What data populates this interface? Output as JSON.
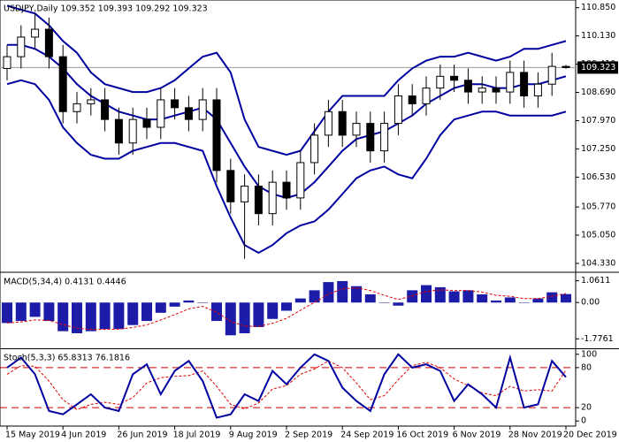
{
  "chart_data": [
    {
      "type": "candlestick",
      "title": "USDJPY,Daily  109.352 109.393 109.292 109.323",
      "categories": [
        "15 May 2019",
        null,
        null,
        null,
        "4 Jun 2019",
        null,
        null,
        null,
        "26 Jun 2019",
        null,
        null,
        null,
        "18 Jul 2019",
        null,
        null,
        null,
        "9 Aug 2019",
        null,
        null,
        null,
        "2 Sep 2019",
        null,
        null,
        null,
        "24 Sep 2019",
        null,
        null,
        null,
        "16 Oct 2019",
        null,
        null,
        null,
        "6 Nov 2019",
        null,
        null,
        null,
        "28 Nov 2019",
        null,
        null,
        null,
        "20 Dec 2019"
      ],
      "open": [
        109.3,
        109.6,
        110.1,
        110.3,
        109.6,
        108.2,
        108.4,
        108.5,
        108.0,
        107.4,
        108.0,
        107.8,
        108.5,
        108.3,
        108.0,
        108.5,
        106.7,
        105.9,
        106.3,
        105.6,
        106.4,
        106.0,
        106.9,
        107.6,
        108.2,
        107.6,
        107.9,
        107.2,
        107.9,
        108.6,
        108.4,
        108.8,
        109.1,
        109.0,
        108.7,
        108.8,
        108.7,
        109.2,
        108.6,
        108.9,
        109.352
      ],
      "high": [
        109.9,
        110.4,
        110.7,
        110.6,
        109.9,
        108.7,
        108.8,
        108.8,
        108.3,
        108.3,
        108.3,
        108.8,
        108.8,
        108.6,
        108.8,
        108.8,
        107.0,
        106.6,
        106.6,
        106.7,
        106.7,
        107.2,
        107.9,
        108.5,
        108.5,
        108.2,
        108.2,
        108.2,
        108.9,
        108.9,
        109.1,
        109.4,
        109.4,
        109.3,
        109.1,
        109.1,
        109.5,
        109.5,
        109.2,
        109.7,
        109.393
      ],
      "low": [
        109.0,
        109.3,
        109.8,
        109.3,
        107.9,
        107.9,
        108.1,
        107.7,
        107.1,
        107.1,
        107.5,
        107.5,
        108.0,
        107.7,
        107.7,
        106.4,
        105.6,
        104.45,
        105.3,
        105.3,
        105.7,
        105.7,
        106.6,
        107.3,
        107.3,
        107.3,
        106.9,
        106.9,
        107.6,
        108.1,
        108.1,
        108.5,
        108.7,
        108.4,
        108.4,
        108.4,
        108.4,
        108.3,
        108.3,
        108.6,
        109.292
      ],
      "close": [
        109.6,
        110.1,
        110.3,
        109.6,
        108.2,
        108.4,
        108.5,
        108.0,
        107.4,
        108.0,
        107.8,
        108.5,
        108.3,
        108.0,
        108.5,
        106.7,
        105.9,
        106.3,
        105.6,
        106.4,
        106.0,
        106.9,
        107.6,
        108.2,
        107.6,
        107.9,
        107.2,
        107.9,
        108.6,
        108.4,
        108.8,
        109.1,
        109.0,
        108.7,
        108.8,
        108.7,
        109.2,
        108.6,
        108.9,
        109.352,
        109.323
      ],
      "bands": {
        "color": "#0000a0",
        "upper": [
          110.9,
          110.8,
          110.7,
          110.4,
          110.0,
          109.7,
          109.2,
          108.9,
          108.8,
          108.7,
          108.7,
          108.8,
          109.0,
          109.3,
          109.6,
          109.7,
          109.2,
          108.0,
          107.3,
          107.2,
          107.1,
          107.2,
          107.7,
          108.2,
          108.6,
          108.6,
          108.6,
          108.6,
          109.0,
          109.3,
          109.5,
          109.6,
          109.6,
          109.7,
          109.6,
          109.5,
          109.6,
          109.8,
          109.8,
          109.9,
          110.0
        ],
        "middle": [
          109.9,
          109.9,
          109.8,
          109.6,
          109.3,
          108.9,
          108.6,
          108.4,
          108.2,
          108.1,
          108.0,
          108.0,
          108.1,
          108.2,
          108.3,
          108.0,
          107.4,
          106.8,
          106.3,
          106.1,
          106.0,
          106.1,
          106.4,
          106.8,
          107.2,
          107.5,
          107.6,
          107.7,
          107.9,
          108.1,
          108.4,
          108.6,
          108.8,
          108.9,
          108.9,
          108.8,
          108.8,
          108.9,
          108.9,
          109.0,
          109.1
        ],
        "lower": [
          108.9,
          109.0,
          108.9,
          108.5,
          107.8,
          107.4,
          107.1,
          107.0,
          107.0,
          107.2,
          107.3,
          107.4,
          107.4,
          107.3,
          107.2,
          106.3,
          105.5,
          104.8,
          104.6,
          104.8,
          105.1,
          105.3,
          105.4,
          105.7,
          106.1,
          106.5,
          106.7,
          106.8,
          106.6,
          106.5,
          107.0,
          107.6,
          108.0,
          108.1,
          108.2,
          108.2,
          108.1,
          108.1,
          108.1,
          108.1,
          108.2
        ]
      },
      "current_price": 109.323,
      "ylim": [
        104.15,
        111.0
      ],
      "yticks": [
        {
          "value": 110.85,
          "label": "110.850"
        },
        {
          "value": 110.13,
          "label": "110.130"
        },
        {
          "value": 109.41,
          "label": "109.410"
        },
        {
          "value": 108.69,
          "label": "108.690"
        },
        {
          "value": 107.97,
          "label": "107.970"
        },
        {
          "value": 107.25,
          "label": "107.250"
        },
        {
          "value": 106.53,
          "label": "106.530"
        },
        {
          "value": 105.77,
          "label": "105.770"
        },
        {
          "value": 105.05,
          "label": "105.050"
        },
        {
          "value": 104.33,
          "label": "104.330"
        }
      ]
    },
    {
      "type": "macd",
      "title": "MACD(5,34,4) 0.4131 0.4446",
      "histogram": {
        "color": "#1c1ca8",
        "values": [
          -1.0,
          -0.9,
          -0.7,
          -0.9,
          -1.4,
          -1.5,
          -1.4,
          -1.3,
          -1.3,
          -1.1,
          -0.9,
          -0.5,
          -0.2,
          0.1,
          0.0,
          -0.9,
          -1.6,
          -1.5,
          -1.2,
          -0.8,
          -0.4,
          0.2,
          0.6,
          1.0,
          1.05,
          0.8,
          0.4,
          0.0,
          -0.15,
          0.6,
          0.85,
          0.75,
          0.55,
          0.6,
          0.4,
          0.1,
          0.25,
          0.0,
          0.2,
          0.5,
          0.4131
        ]
      },
      "signal": {
        "color": "#e00000",
        "values": [
          -1.0,
          -0.95,
          -0.85,
          -0.87,
          -1.08,
          -1.25,
          -1.31,
          -1.31,
          -1.3,
          -1.22,
          -1.09,
          -0.85,
          -0.59,
          -0.31,
          -0.19,
          -0.47,
          -0.92,
          -1.15,
          -1.17,
          -1.02,
          -0.77,
          -0.38,
          0.01,
          0.41,
          0.67,
          0.72,
          0.59,
          0.35,
          0.15,
          0.33,
          0.54,
          0.62,
          0.59,
          0.59,
          0.51,
          0.35,
          0.31,
          0.19,
          0.19,
          0.31,
          0.4446
        ]
      },
      "ylim": [
        -2.15,
        1.35
      ],
      "yticks": [
        1.0611,
        {
          "value": 0,
          "label": "0.00"
        },
        -1.7761
      ]
    },
    {
      "type": "stochastic",
      "title": "Stoch(5,3,3) 65.8313 76.1816",
      "main": {
        "color": "#0000a0",
        "values": [
          80,
          95,
          70,
          15,
          10,
          25,
          40,
          20,
          15,
          70,
          85,
          40,
          75,
          90,
          60,
          5,
          10,
          40,
          30,
          75,
          55,
          80,
          100,
          90,
          50,
          30,
          15,
          70,
          100,
          80,
          85,
          75,
          30,
          55,
          40,
          20,
          95,
          20,
          25,
          90,
          65.8313
        ]
      },
      "signal": {
        "color": "#e00000",
        "values": [
          70,
          83,
          82,
          60,
          32,
          17,
          25,
          28,
          25,
          35,
          57,
          65,
          67,
          68,
          75,
          52,
          25,
          18,
          27,
          48,
          53,
          70,
          78,
          90,
          80,
          57,
          32,
          38,
          62,
          83,
          88,
          80,
          63,
          53,
          42,
          38,
          52,
          45,
          47,
          45,
          76.1816
        ]
      },
      "levels": [
        80,
        20
      ],
      "level_color": "#d00000",
      "ylim": [
        -5,
        105
      ],
      "yticks": [
        100,
        80,
        20,
        0
      ]
    }
  ]
}
